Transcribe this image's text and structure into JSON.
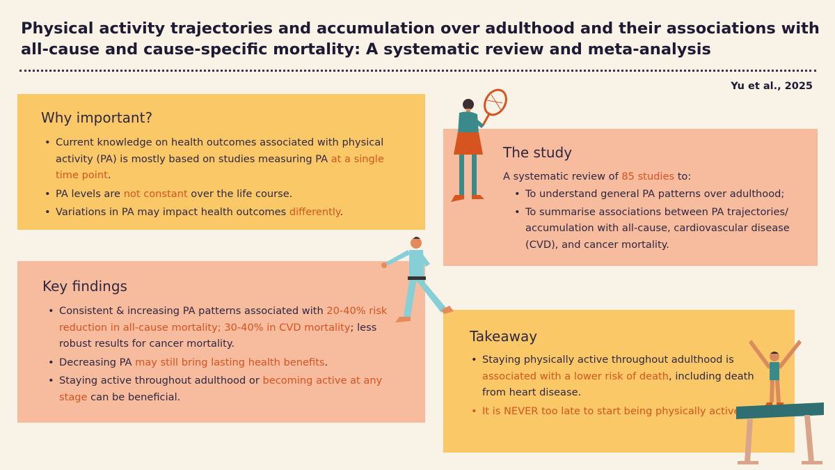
{
  "header": {
    "title_line1": "Physical activity trajectories and accumulation over adulthood and their associations with",
    "title_line2": "all-cause and cause-specific mortality: A systematic review and meta-analysis",
    "citation": "Yu et al., 2025"
  },
  "why_important": {
    "heading": "Why important?",
    "items": [
      {
        "text": "Current knowledge on health outcomes associated with physical activity (PA) is mostly based on studies measuring PA ",
        "highlight": "at a single time point",
        "after": "."
      },
      {
        "text": "PA levels are ",
        "highlight": "not constant",
        "after": " over the life course."
      },
      {
        "text": "Variations in PA may impact health outcomes ",
        "highlight": "differently",
        "after": "."
      }
    ]
  },
  "the_study": {
    "heading": "The study",
    "lead_before": "A systematic review of ",
    "lead_highlight": "85 studies",
    "lead_after": " to:",
    "items": [
      "To understand general PA patterns over adulthood;",
      "To summarise associations between PA trajectories/ accumulation with all-cause, cardiovascular disease (CVD), and cancer mortality."
    ]
  },
  "key_findings": {
    "heading": "Key findings",
    "items": [
      {
        "text": "Consistent & increasing PA patterns associated with ",
        "highlight": "20-40% risk reduction in all-cause mortality; 30-40% in CVD mortality",
        "after": "; less robust results for cancer mortality."
      },
      {
        "text": "Decreasing PA ",
        "highlight": "may still bring lasting health benefits",
        "after": "."
      },
      {
        "text": "Staying active throughout adulthood or ",
        "highlight": "becoming active at any stage",
        "after": " can be beneficial."
      }
    ]
  },
  "takeaway": {
    "heading": "Takeaway",
    "item1_before": "Staying physically active throughout adulthood is ",
    "item1_highlight": "associated with a lower risk of death",
    "item1_after": ", including death from heart disease.",
    "item2": "It is NEVER too late to start being physically active!"
  },
  "colors": {
    "background": "#f8f3e6",
    "yellow_card": "#fbc867",
    "salmon_card": "#f7bb9e",
    "highlight": "#d5541f",
    "text": "#2e2740"
  },
  "illustrations": [
    "tennis-player-figure",
    "karate-kick-figure",
    "gymnast-beam-figure"
  ]
}
